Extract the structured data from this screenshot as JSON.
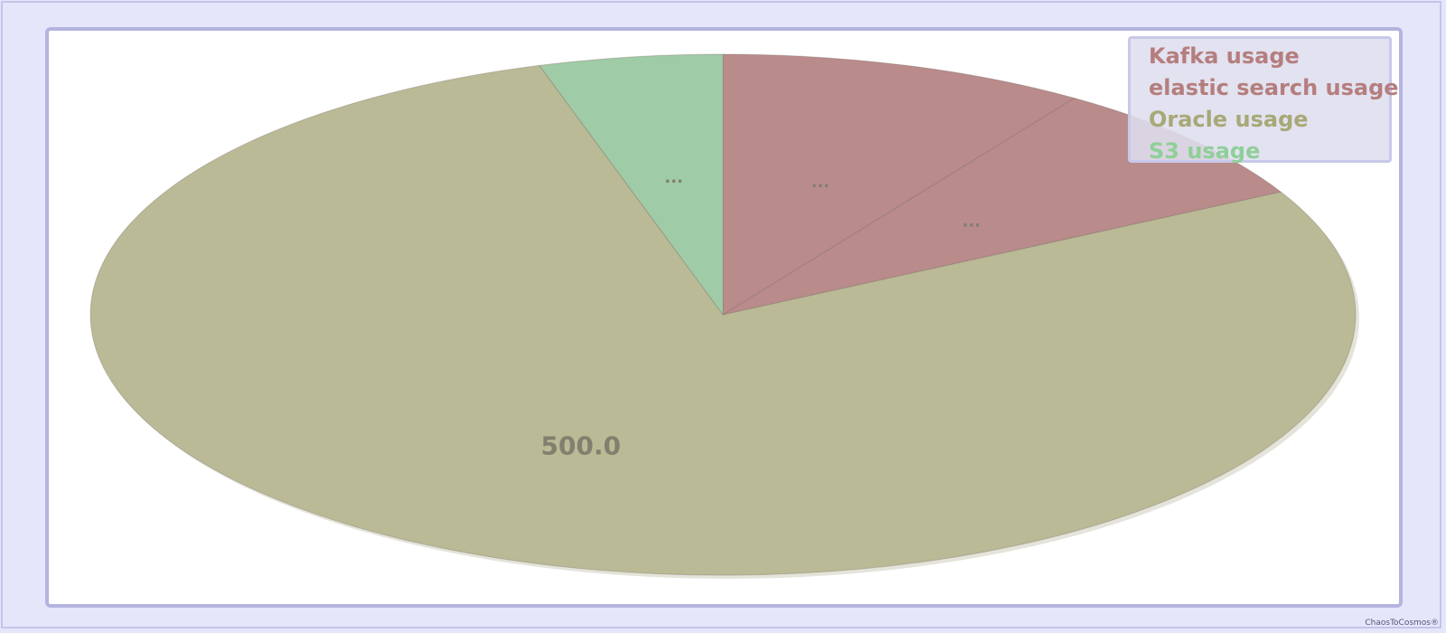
{
  "chart_data": {
    "type": "pie",
    "title": "",
    "slices": [
      {
        "name": "Kafka usage",
        "value": 60,
        "label": "...",
        "color": "#b98b8b"
      },
      {
        "name": "elastic search usage",
        "value": 50,
        "label": "...",
        "color": "#b98b8b"
      },
      {
        "name": "Oracle usage",
        "value": 500,
        "label": "500.0",
        "color": "#baba96"
      },
      {
        "name": "S3 usage",
        "value": 30,
        "label": "...",
        "color": "#a0cba7"
      }
    ],
    "legend_placement": "top-right",
    "legend_colors": [
      "#b57e7e",
      "#b57e7e",
      "#a8a878",
      "#8fcf98"
    ],
    "label_color": "#80806e"
  },
  "watermark": "ChaosToCosmos®"
}
